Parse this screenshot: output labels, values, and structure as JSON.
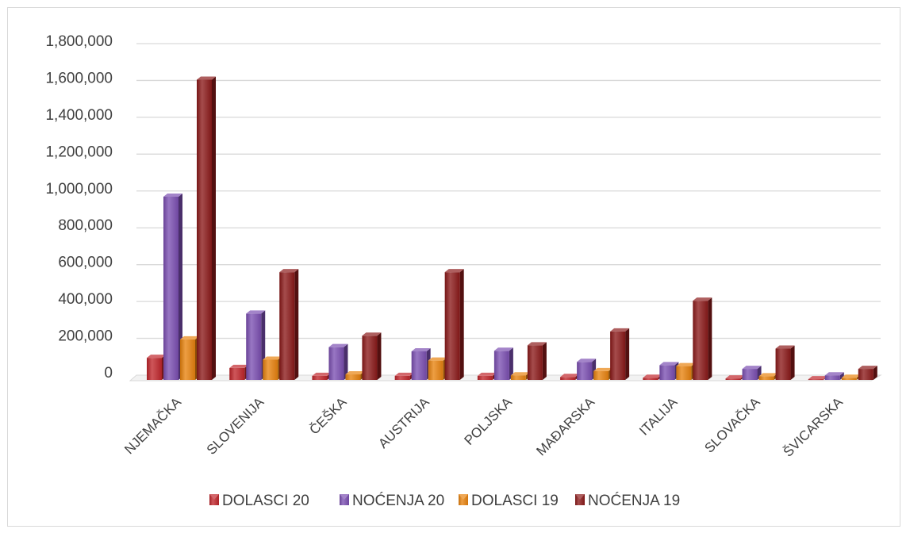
{
  "chart_data": {
    "type": "bar",
    "style": "3d-clustered-column",
    "categories": [
      "NJEMAČKA",
      "SLOVENIJA",
      "ČEŠKA",
      "AUSTRIJA",
      "POLJSKA",
      "MAĐARSKA",
      "ITALIJA",
      "SLOVAČKA",
      "ŠVICARSKA"
    ],
    "series": [
      {
        "name": "DOLASCI 20",
        "color": "#c0262b",
        "values": [
          120000,
          65000,
          22000,
          22000,
          22000,
          16000,
          12000,
          8000,
          4000
        ]
      },
      {
        "name": "NOĆENJA 20",
        "color": "#7b4fb2",
        "values": [
          995000,
          360000,
          178000,
          155000,
          158000,
          98000,
          80000,
          60000,
          25000
        ]
      },
      {
        "name": "DOLASCI 19",
        "color": "#e8820e",
        "values": [
          220000,
          110000,
          30000,
          105000,
          25000,
          48000,
          75000,
          20000,
          12000
        ]
      },
      {
        "name": "NOĆENJA  19",
        "color": "#8b1a1a",
        "values": [
          1630000,
          585000,
          240000,
          585000,
          188000,
          263000,
          430000,
          170000,
          60000
        ]
      }
    ],
    "y_ticks": [
      "0",
      "200,000",
      "400,000",
      "600,000",
      "800,000",
      "1,000,000",
      "1,200,000",
      "1,400,000",
      "1,600,000",
      "1,800,000"
    ],
    "ylim": [
      0,
      1800000
    ],
    "grid": true,
    "legend_position": "bottom"
  }
}
